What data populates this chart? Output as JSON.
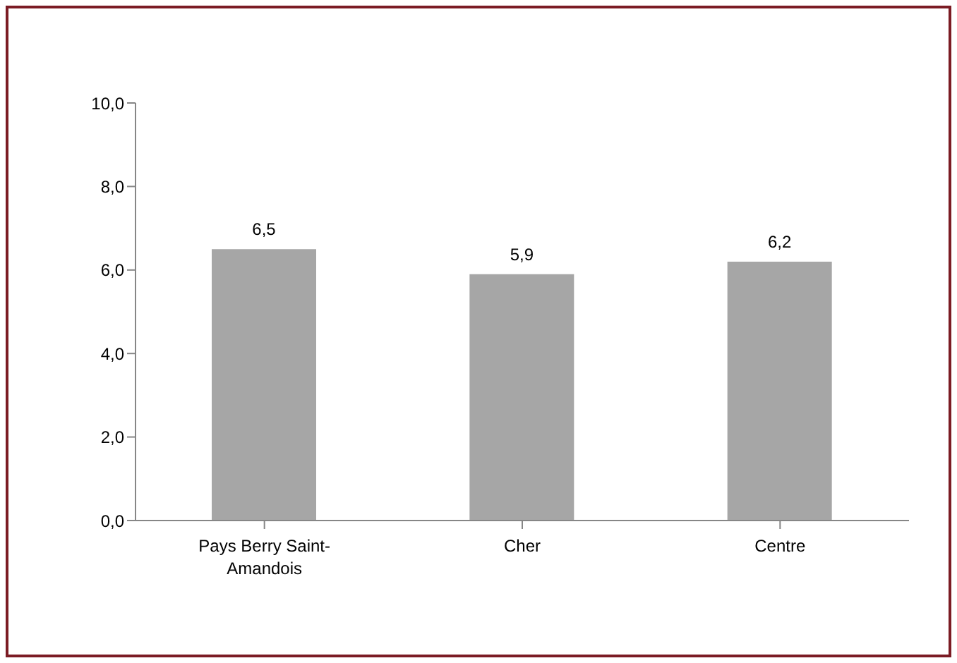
{
  "chart_data": {
    "type": "bar",
    "categories": [
      "Pays Berry Saint-Amandois",
      "Cher",
      "Centre"
    ],
    "values": [
      6.5,
      5.9,
      6.2
    ],
    "value_labels": [
      "6,5",
      "5,9",
      "6,2"
    ],
    "color": "#a6a6a6",
    "ylim": [
      0,
      10
    ],
    "yticks": [
      {
        "value": 0,
        "label": "0,0"
      },
      {
        "value": 2,
        "label": "2,0"
      },
      {
        "value": 4,
        "label": "4,0"
      },
      {
        "value": 6,
        "label": "6,0"
      },
      {
        "value": 8,
        "label": "8,0"
      },
      {
        "value": 10,
        "label": "10,0"
      }
    ],
    "grid": false,
    "legend": false
  }
}
